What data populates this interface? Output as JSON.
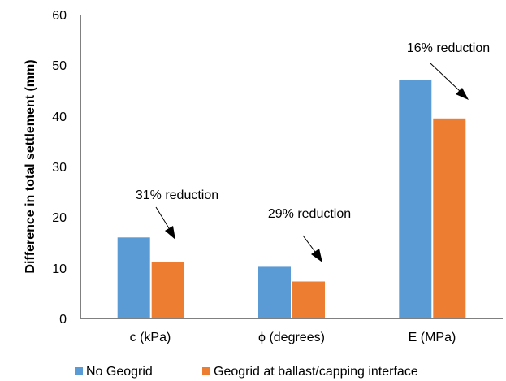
{
  "chart_data": {
    "type": "bar",
    "ylabel": "Difference in total settlement (mm)",
    "xlabel": "",
    "ylim": [
      0,
      60
    ],
    "yticks": [
      "0",
      "10",
      "20",
      "30",
      "40",
      "50",
      "60"
    ],
    "categories": [
      "c (kPa)",
      "ϕ (degrees)",
      "E (MPa)"
    ],
    "series": [
      {
        "name": "No Geogrid",
        "values": [
          16,
          10.2,
          47
        ],
        "color": "#5b9bd5"
      },
      {
        "name": "Geogrid at ballast/capping interface",
        "values": [
          11.1,
          7.3,
          39.5
        ],
        "color": "#ed7d31"
      }
    ],
    "annotations": [
      "31% reduction",
      "29% reduction",
      "16% reduction"
    ],
    "legend_position": "bottom",
    "grid": false
  }
}
